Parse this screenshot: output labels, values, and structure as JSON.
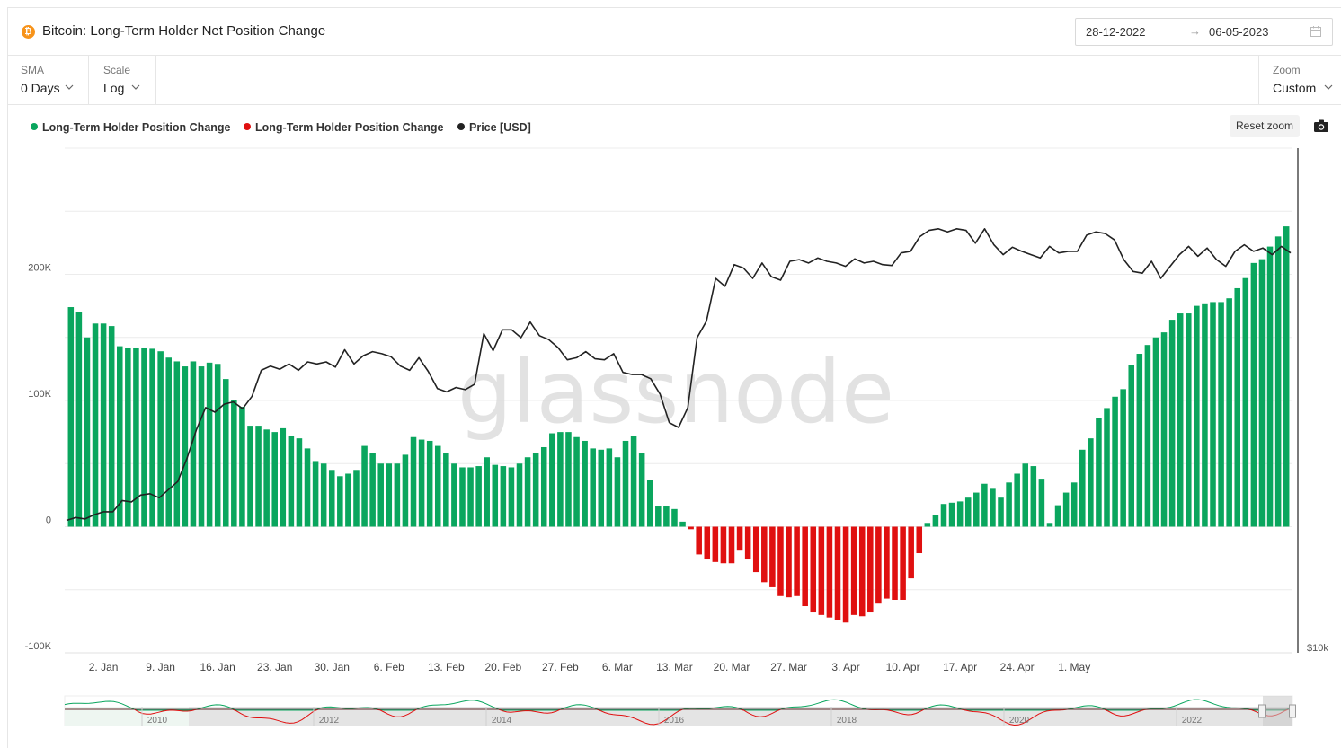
{
  "header": {
    "title": "Bitcoin: Long-Term Holder Net Position Change",
    "date_from": "28-12-2022",
    "date_arrow": "→",
    "date_to": "06-05-2023"
  },
  "controls": {
    "sma_label": "SMA",
    "sma_value": "0 Days",
    "scale_label": "Scale",
    "scale_value": "Log",
    "zoom_label": "Zoom",
    "zoom_value": "Custom"
  },
  "toolbar": {
    "reset_zoom": "Reset zoom"
  },
  "watermark": "glassnode",
  "colors": {
    "positive": "#0aa65e",
    "negative": "#e01010",
    "price": "#222222",
    "grid": "#ececec",
    "bitcoin": "#f7931a"
  },
  "chart_data": {
    "type": "bar",
    "legend": [
      {
        "name": "Long-Term Holder Position Change",
        "color": "#0aa65e"
      },
      {
        "name": "Long-Term Holder Position Change",
        "color": "#e01010"
      },
      {
        "name": "Price [USD]",
        "color": "#222222"
      }
    ],
    "legend_position": "top-left",
    "ylim": [
      -100000,
      300000
    ],
    "y_ticks": [
      {
        "value": -100000,
        "label": "-100K"
      },
      {
        "value": 0,
        "label": "0"
      },
      {
        "value": 100000,
        "label": "100K"
      },
      {
        "value": 200000,
        "label": "200K"
      }
    ],
    "price_axis_label": "$10k",
    "grid": true,
    "x_ticks": [
      "2. Jan",
      "9. Jan",
      "16. Jan",
      "23. Jan",
      "30. Jan",
      "6. Feb",
      "13. Feb",
      "20. Feb",
      "27. Feb",
      "6. Mar",
      "13. Mar",
      "20. Mar",
      "27. Mar",
      "3. Apr",
      "10. Apr",
      "17. Apr",
      "24. Apr",
      "1. May"
    ],
    "x_start": "2022-12-29",
    "series": [
      {
        "name": "Long-Term Holder Position Change",
        "values": [
          174000,
          170000,
          150000,
          161000,
          161000,
          159000,
          143000,
          142000,
          142000,
          142000,
          141000,
          139000,
          134000,
          131000,
          127000,
          131000,
          127000,
          130000,
          129000,
          117000,
          100000,
          95000,
          80000,
          80000,
          77000,
          75000,
          78000,
          72000,
          70000,
          62000,
          52000,
          50000,
          45000,
          40000,
          42000,
          45000,
          64000,
          58000,
          50000,
          50000,
          50000,
          57000,
          71000,
          69000,
          68000,
          64000,
          58000,
          50000,
          47000,
          47000,
          48000,
          55000,
          49000,
          48000,
          47000,
          50000,
          55000,
          58000,
          63000,
          74000,
          75000,
          75000,
          71000,
          68000,
          62000,
          61000,
          62000,
          55000,
          68000,
          72000,
          58000,
          37000,
          16000,
          16000,
          14000,
          4000,
          -2000,
          -22000,
          -26000,
          -28000,
          -29000,
          -29000,
          -19000,
          -26000,
          -36000,
          -44000,
          -48000,
          -55000,
          -56000,
          -55000,
          -63000,
          -68000,
          -70000,
          -72000,
          -74000,
          -76000,
          -70000,
          -71000,
          -68000,
          -61000,
          -57000,
          -58000,
          -58000,
          -41000,
          -21000,
          3000,
          9000,
          18000,
          19000,
          20000,
          23000,
          27000,
          34000,
          30000,
          23000,
          35000,
          42000,
          50000,
          48000,
          38000,
          3000,
          17000,
          27000,
          35000,
          61000,
          70000,
          86000,
          94000,
          103000,
          109000,
          128000,
          137000,
          144000,
          150000,
          154000,
          164000,
          169000,
          169000,
          175000,
          177000,
          178000,
          178000,
          181000,
          189000,
          197000,
          209000,
          212000,
          222000,
          230000,
          238000
        ]
      },
      {
        "name": "Price [USD]",
        "values": [
          16500,
          16600,
          16550,
          16700,
          16800,
          16800,
          17200,
          17150,
          17400,
          17450,
          17300,
          17600,
          17900,
          18800,
          19950,
          20900,
          20700,
          21050,
          21150,
          20850,
          21400,
          22600,
          22800,
          22650,
          22900,
          22600,
          23000,
          22900,
          23000,
          22750,
          23600,
          22900,
          23300,
          23500,
          23400,
          23250,
          22800,
          22600,
          23200,
          22550,
          21750,
          21600,
          21800,
          21700,
          21950,
          24400,
          23550,
          24600,
          24600,
          24200,
          25000,
          24300,
          24100,
          23700,
          23100,
          23200,
          23500,
          23150,
          23100,
          23400,
          22500,
          22400,
          22400,
          22200,
          21500,
          20250,
          20050,
          20900,
          24200,
          25050,
          27400,
          26950,
          28200,
          28000,
          27400,
          28300,
          27500,
          27300,
          28400,
          28500,
          28300,
          28600,
          28400,
          28300,
          28100,
          28550,
          28300,
          28400,
          28200,
          28150,
          28900,
          29000,
          29900,
          30300,
          30400,
          30200,
          30400,
          30300,
          29500,
          30400,
          29400,
          28800,
          29250,
          29000,
          28800,
          28600,
          29300,
          28900,
          29000,
          29000,
          30000,
          30200,
          30100,
          29700,
          28500,
          27800,
          27700,
          28400,
          27400,
          28100,
          28800,
          29300,
          28700,
          29200,
          28500,
          28100,
          29000,
          29400,
          29000,
          29200,
          28800,
          29300,
          28900
        ]
      }
    ],
    "price_start_index": 0
  },
  "navigator": {
    "labels": [
      "2010",
      "2012",
      "2014",
      "2016",
      "2018",
      "2020",
      "2022"
    ]
  }
}
